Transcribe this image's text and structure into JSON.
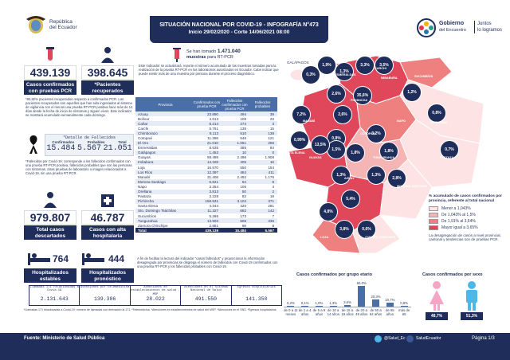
{
  "header": {
    "ministry_line1": "República",
    "ministry_line2": "del Ecuador",
    "title": "SITUACIÓN NACIONAL POR COVID-19 - INFOGRAFÍA N°473",
    "subtitle": "Inicio 29/02/2020 - Corte 14/06/2021 08:00",
    "gob_name_line1": "Gobierno",
    "gob_name_line2": "del Encuentro",
    "gob_slogan_line1": "Juntos",
    "gob_slogan_line2": "lo logramos"
  },
  "left": {
    "confirmed_pcr": "439.139",
    "confirmed_pcr_label": "Casos confirmados con pruebas PCR",
    "recovered": "398.645",
    "recovered_label": "*Pacientes recuperados",
    "recovered_note": "*90,82% pacientes recuperados respecto a confirmados PCR. Los pacientes recuperados son aquellos que han sido ingresados al sistema de vigilancia con el menos una prueba RT-PCR positiva hace más de 14 días desde la fecha de inicio de síntomas y siguen vivos. Este indicador se mostrará acumulado semanalmente cada domingo.",
    "deceased_title": "*Detalle de Fallecidos",
    "deceased_headers": [
      "Confirmados",
      "Probables",
      "Total"
    ],
    "deceased_values": [
      "15.484",
      "5.567",
      "21.051"
    ],
    "deceased_note": "*Fallecidos por Covid-19: corresponde a los fallecidos confirmados con una prueba RT-PCR positiva, fallecidos probables que son las personas con síntomas, otras pruebas de laboratorio o imagen relacionados a Covid-19, sin una prueba RT-PCR.",
    "discarded": "979.807",
    "discarded_label": "Total casos descartados",
    "discharged": "46.787",
    "discharged_label": "Casos con alta hospitalaria",
    "stable": "764",
    "stable_label": "Hospitalizados estables",
    "reserved": "444",
    "reserved_label": "Hospitalizados pronóstico reservado"
  },
  "middle": {
    "samples_text_prefix": "Se han tomado",
    "samples_value": "1.471.040",
    "samples_text_suffix": "muestras",
    "samples_text_suffix2": "para RT-PCR",
    "intro_note": "Este indicador se actualizará, reporte el número acumulado de las muestras tomadas para la realización de la prueba RT-PCR en los laboratorios autorizados en Ecuador. Cabe indicar que puede existir más de una muestra por persona durante el proceso diagnóstico.",
    "table_headers": [
      "Provincia",
      "Confirmados con prueba PCR",
      "Fallecidos confirmados con prueba PCR",
      "Fallecidos probables"
    ],
    "rows": [
      [
        "Azuay",
        "23.890",
        "494",
        "39"
      ],
      [
        "Bolívar",
        "4.613",
        "108",
        "23"
      ],
      [
        "Cañar",
        "8.214",
        "274",
        "3"
      ],
      [
        "Carchi",
        "5.761",
        "135",
        "15"
      ],
      [
        "Chimborazo",
        "8.113",
        "510",
        "138"
      ],
      [
        "Cotopaxi",
        "11.286",
        "546",
        "121"
      ],
      [
        "El Oro",
        "21.010",
        "1.061",
        "255"
      ],
      [
        "Esmeraldas",
        "8.535",
        "385",
        "84"
      ],
      [
        "Galápagos",
        "1.453",
        "10",
        "0"
      ],
      [
        "Guayas",
        "59.499",
        "2.496",
        "1.908"
      ],
      [
        "Imbabura",
        "14.328",
        "405",
        "16"
      ],
      [
        "Loja",
        "16.570",
        "550",
        "154"
      ],
      [
        "Los Ríos",
        "12.397",
        "484",
        "411"
      ],
      [
        "Manabí",
        "31.408",
        "2.492",
        "1.176"
      ],
      [
        "Morona Santiago",
        "5.841",
        "54",
        "8"
      ],
      [
        "Napo",
        "3.354",
        "106",
        "4"
      ],
      [
        "Orellana",
        "3.813",
        "50",
        "2"
      ],
      [
        "Pastaza",
        "3.228",
        "83",
        "19"
      ],
      [
        "Pichincha",
        "156.531",
        "3.104",
        "371"
      ],
      [
        "Santa Elena",
        "4.344",
        "420",
        "281"
      ],
      [
        "Sto. Domingo Tsáchilas",
        "11.327",
        "682",
        "142"
      ],
      [
        "Sucumbíos",
        "5.286",
        "173",
        "7"
      ],
      [
        "Tungurahua",
        "13.903",
        "506",
        "336"
      ],
      [
        "Zamora Chinchipe",
        "2.851",
        "98",
        "8"
      ]
    ],
    "total_row": [
      "Total",
      "439.139",
      "15.484",
      "5.567"
    ],
    "footer_note": "A fin de facilitar la lectura del indicador \"casos fallecidos\" y proporcionar la información desagregada por provincias se disgrega el número de fallecidos con Covid-19 confirmados con una prueba RT-PCR y los fallecidos probables con Covid-19."
  },
  "map": {
    "galapagos_label": "GALÁPAGOS",
    "percentages": [
      "0,3%",
      "1,9%",
      "1,3%",
      "3,3%",
      "3,5%",
      "2,6%",
      "35,6%",
      "1,2%",
      "7,2%",
      "2,6%",
      "0,8%",
      "3,2%",
      "1,8%",
      "0,8%",
      "0,7%",
      "1,5%",
      "0,99%",
      "13,5%",
      "1,8%",
      "1,3%",
      "1,3%",
      "5,4%",
      "2,8%",
      "4,8%",
      "3,8%",
      "0,6%"
    ],
    "province_labels": [
      "ESMERALDAS",
      "CARCHI",
      "IMBABURA",
      "SUCUMBÍOS",
      "PICHINCHA",
      "MANABÍ",
      "NAPO",
      "ORELLANA",
      "COTOPAXI",
      "TUNGURAHUA",
      "PASTAZA",
      "GUAYAS",
      "SANTA ELENA",
      "AZUAY",
      "EL ORO",
      "LOJA",
      "MORONA SANTIAGO",
      "ZAMORA CHINCHIPE"
    ],
    "legend_title": "% acumulado de casos confirmados por provincia, referente al total nacional",
    "legend": [
      "Menor a 1,043%",
      "De 1,043% al 1,5%",
      "De 1,91% al 3,64%",
      "Mayor igual a 3,65%"
    ],
    "legend_colors": [
      "#fde3e3",
      "#f6b5b5",
      "#ee8080",
      "#e0475a"
    ],
    "map_note": "La desagregación de casos a nivel provincial, cantonal y tendencias son de pruebas PCR."
  },
  "age_chart": {
    "title": "Casos confirmados por grupo etario",
    "categories": [
      "de 0 a 11 meses",
      "de 1 a 4 años",
      "de 5 a 9 años",
      "de 10 a 14 años",
      "de 15 a 19 años",
      "de 20 a 49 años",
      "de 50 a 64 años",
      "de 65 años",
      "más de 65"
    ],
    "values": [
      0.2,
      0.1,
      1.0,
      1.3,
      3.6,
      60.0,
      20.3,
      10.7,
      0.8
    ],
    "labels": [
      "0,2%",
      "0,1%",
      "1,0%",
      "1,3%",
      "3,6%",
      "60,0%",
      "20,3%",
      "10,7%",
      "0,8%"
    ]
  },
  "sex_chart": {
    "title": "Casos confirmados por sexo",
    "female": "48,7%",
    "male": "51,3%",
    "female_color": "#f5a6c6",
    "male_color": "#4db7e8"
  },
  "bottom_table": {
    "headers": [
      "Llamadas 171 relacionadas a Covid-19",
      "Atenciones por telemedicina",
      "Atenciones en establecimientos de salud - MSP",
      "Atenciones en el Sistema Nacional de Salud",
      "Egresos hospitalarios"
    ],
    "values": [
      "2.131.643",
      "139.386",
      "28.022",
      "491.550",
      "141.350"
    ],
    "notes": "*Llamadas 171 relacionadas a Covid-19: número de llamadas con derivación al 171. *Telemedicina. *Atenciones en establecimientos de salud del MSP. *Atenciones en el SNS. *Egresos hospitalarios."
  },
  "footer": {
    "source": "Fuente: Ministerio de Salud Pública",
    "twitter": "@Salud_Ec",
    "facebook": "SaludEcuador",
    "page": "Página 1/3"
  }
}
